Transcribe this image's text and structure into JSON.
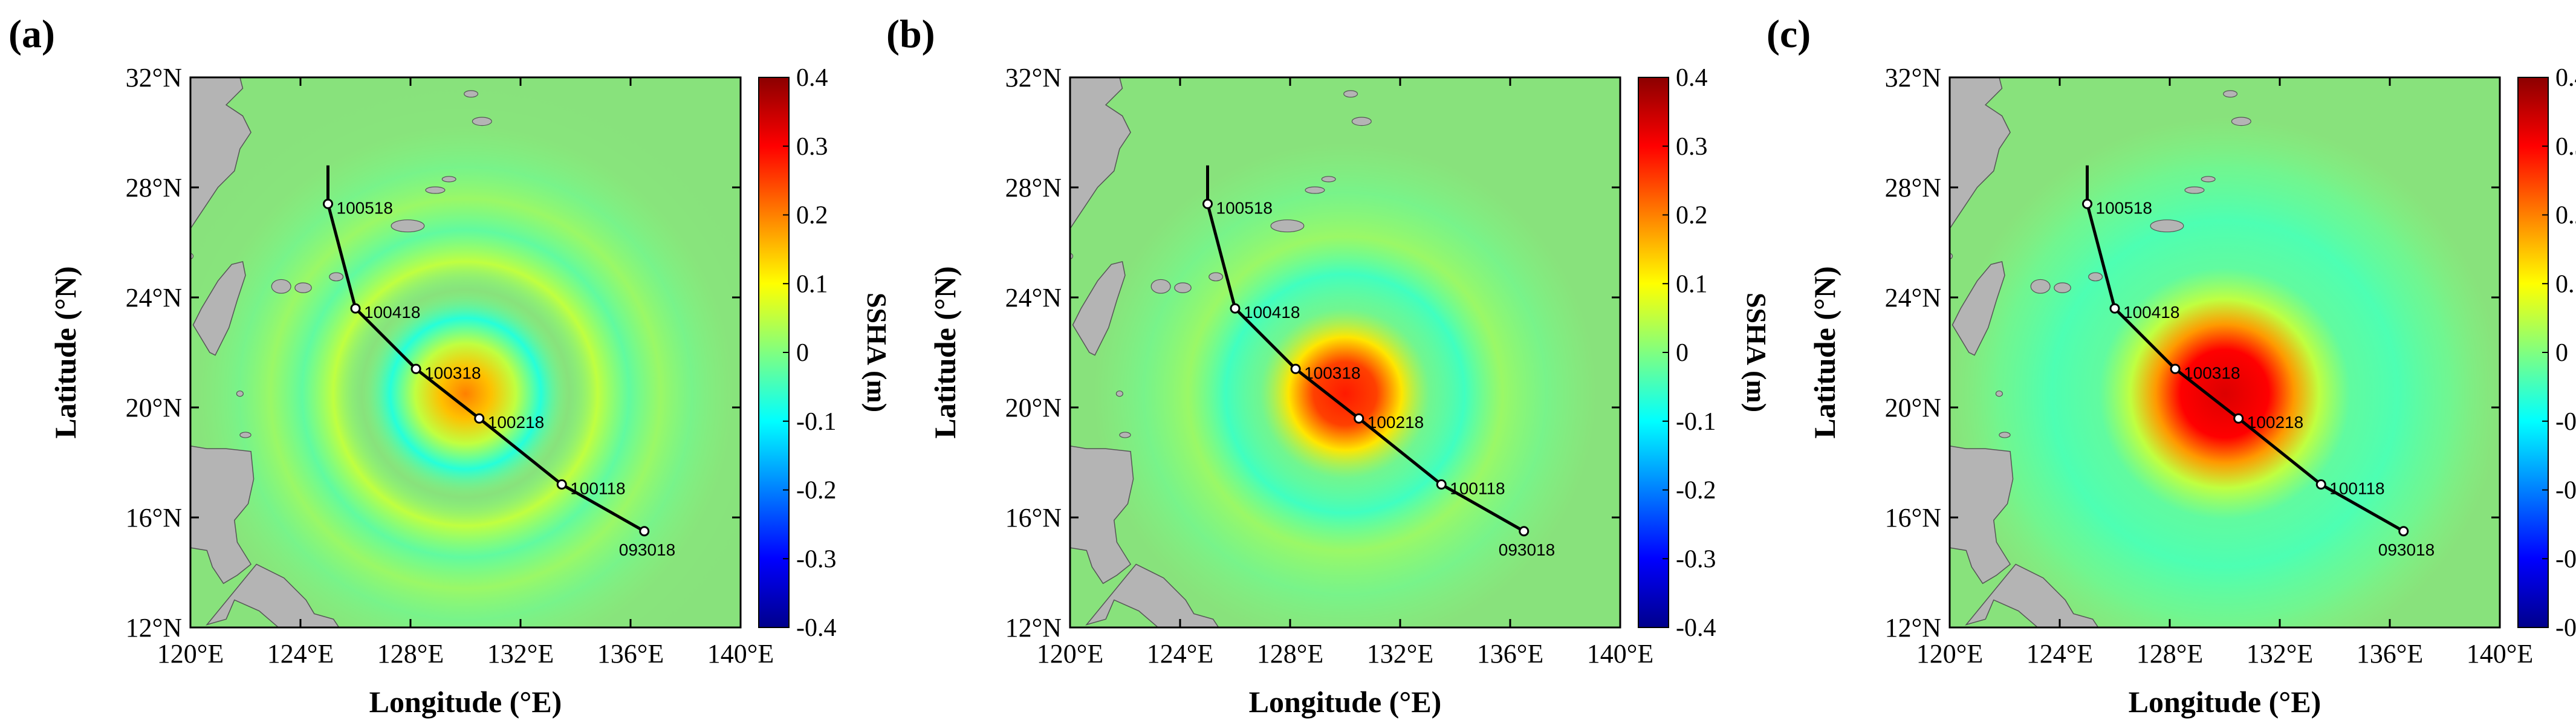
{
  "figure": {
    "panels": [
      {
        "label": "(a)"
      },
      {
        "label": "(b)"
      },
      {
        "label": "(c)"
      }
    ],
    "x_axis_label": "Longitude (°E)",
    "y_axis_label": "Latitude (°N)",
    "x_ticks": [
      "120°E",
      "124°E",
      "128°E",
      "132°E",
      "136°E",
      "140°E"
    ],
    "y_ticks": [
      "32°N",
      "28°N",
      "24°N",
      "20°N",
      "16°N",
      "12°N"
    ],
    "colorbar_label": "SSHA (m)",
    "colorbar_ticks": [
      "0.4",
      "0.3",
      "0.2",
      "0.1",
      "0",
      "-0.1",
      "-0.2",
      "-0.3",
      "-0.4"
    ],
    "colors": {
      "sea_background": "#88e27c",
      "land": "#b4b4b4",
      "track": "#000000",
      "colormap": [
        "#00008b",
        "#0000ff",
        "#0080ff",
        "#00ffff",
        "#80ff80",
        "#ffff00",
        "#ff8000",
        "#ff0000",
        "#8b0000"
      ]
    }
  },
  "chart_data": [
    {
      "type": "heatmap",
      "title": "(a)",
      "xlabel": "Longitude (°E)",
      "ylabel": "Latitude (°N)",
      "xlim": [
        120,
        140
      ],
      "ylim": [
        12,
        32
      ],
      "colorbar": {
        "label": "SSHA (m)",
        "range": [
          -0.4,
          0.4
        ]
      },
      "anomaly": {
        "center": [
          130.0,
          20.5
        ],
        "peak": 0.2,
        "pattern": "concentric rings"
      },
      "track": [
        {
          "lon": 125.0,
          "lat": 28.8,
          "label": ""
        },
        {
          "lon": 125.0,
          "lat": 27.4,
          "label": "100518"
        },
        {
          "lon": 126.0,
          "lat": 23.6,
          "label": "100418"
        },
        {
          "lon": 128.2,
          "lat": 21.4,
          "label": "100318"
        },
        {
          "lon": 130.5,
          "lat": 19.6,
          "label": "100218"
        },
        {
          "lon": 133.5,
          "lat": 17.2,
          "label": "100118"
        },
        {
          "lon": 136.5,
          "lat": 15.5,
          "label": "093018"
        }
      ]
    },
    {
      "type": "heatmap",
      "title": "(b)",
      "xlabel": "Longitude (°E)",
      "ylabel": "Latitude (°N)",
      "xlim": [
        120,
        140
      ],
      "ylim": [
        12,
        32
      ],
      "colorbar": {
        "label": "SSHA (m)",
        "range": [
          -0.4,
          0.4
        ]
      },
      "anomaly": {
        "center": [
          130.0,
          20.5
        ],
        "peak": 0.28,
        "pattern": "central maximum with faint ring"
      },
      "track": [
        {
          "lon": 125.0,
          "lat": 28.8,
          "label": ""
        },
        {
          "lon": 125.0,
          "lat": 27.4,
          "label": "100518"
        },
        {
          "lon": 126.0,
          "lat": 23.6,
          "label": "100418"
        },
        {
          "lon": 128.2,
          "lat": 21.4,
          "label": "100318"
        },
        {
          "lon": 130.5,
          "lat": 19.6,
          "label": "100218"
        },
        {
          "lon": 133.5,
          "lat": 17.2,
          "label": "100118"
        },
        {
          "lon": 136.5,
          "lat": 15.5,
          "label": "093018"
        }
      ]
    },
    {
      "type": "heatmap",
      "title": "(c)",
      "xlabel": "Longitude (°E)",
      "ylabel": "Latitude (°N)",
      "xlim": [
        120,
        140
      ],
      "ylim": [
        12,
        32
      ],
      "colorbar": {
        "label": "SSHA (m)",
        "range": [
          -0.4,
          0.4
        ]
      },
      "anomaly": {
        "center": [
          130.0,
          20.5
        ],
        "peak": 0.33,
        "pattern": "broad central maximum"
      },
      "track": [
        {
          "lon": 125.0,
          "lat": 28.8,
          "label": ""
        },
        {
          "lon": 125.0,
          "lat": 27.4,
          "label": "100518"
        },
        {
          "lon": 126.0,
          "lat": 23.6,
          "label": "100418"
        },
        {
          "lon": 128.2,
          "lat": 21.4,
          "label": "100318"
        },
        {
          "lon": 130.5,
          "lat": 19.6,
          "label": "100218"
        },
        {
          "lon": 133.5,
          "lat": 17.2,
          "label": "100118"
        },
        {
          "lon": 136.5,
          "lat": 15.5,
          "label": "093018"
        }
      ]
    }
  ]
}
